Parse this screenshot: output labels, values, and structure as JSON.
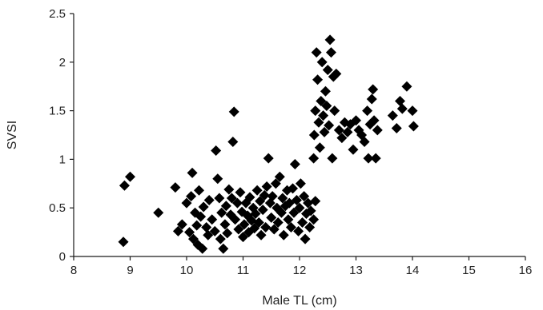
{
  "chart_data": {
    "type": "scatter",
    "title": "",
    "xlabel": "Male TL (cm)",
    "ylabel": "SVSI",
    "xlim": [
      8,
      16
    ],
    "ylim": [
      0,
      2.5
    ],
    "x_ticks": [
      "8",
      "9",
      "10",
      "11",
      "12",
      "13",
      "14",
      "15",
      "16"
    ],
    "y_ticks": [
      "0",
      "0.5",
      "1",
      "1.5",
      "2",
      "2.5"
    ],
    "grid": false,
    "legend": "none",
    "marker": "diamond",
    "marker_color": "#000000",
    "series": [
      {
        "points": [
          [
            8.88,
            0.15
          ],
          [
            8.9,
            0.73
          ],
          [
            9.0,
            0.82
          ],
          [
            9.5,
            0.45
          ],
          [
            9.8,
            0.71
          ],
          [
            9.85,
            0.26
          ],
          [
            9.92,
            0.33
          ],
          [
            10.0,
            0.55
          ],
          [
            10.05,
            0.25
          ],
          [
            10.08,
            0.62
          ],
          [
            10.1,
            0.86
          ],
          [
            10.12,
            0.18
          ],
          [
            10.15,
            0.45
          ],
          [
            10.18,
            0.32
          ],
          [
            10.2,
            0.12
          ],
          [
            10.22,
            0.68
          ],
          [
            10.25,
            0.41
          ],
          [
            10.28,
            0.08
          ],
          [
            10.3,
            0.51
          ],
          [
            10.35,
            0.3
          ],
          [
            10.38,
            0.22
          ],
          [
            10.4,
            0.58
          ],
          [
            10.45,
            0.38
          ],
          [
            10.5,
            0.26
          ],
          [
            10.52,
            1.09
          ],
          [
            10.55,
            0.8
          ],
          [
            10.58,
            0.6
          ],
          [
            10.6,
            0.18
          ],
          [
            10.62,
            0.45
          ],
          [
            10.65,
            0.08
          ],
          [
            10.68,
            0.33
          ],
          [
            10.7,
            0.52
          ],
          [
            10.72,
            0.24
          ],
          [
            10.75,
            0.69
          ],
          [
            10.78,
            0.43
          ],
          [
            10.8,
            0.6
          ],
          [
            10.82,
            1.18
          ],
          [
            10.84,
            1.49
          ],
          [
            10.86,
            0.38
          ],
          [
            10.9,
            0.55
          ],
          [
            10.92,
            0.28
          ],
          [
            10.95,
            0.66
          ],
          [
            10.98,
            0.46
          ],
          [
            11.0,
            0.2
          ],
          [
            11.02,
            0.33
          ],
          [
            11.05,
            0.55
          ],
          [
            11.08,
            0.42
          ],
          [
            11.1,
            0.25
          ],
          [
            11.12,
            0.61
          ],
          [
            11.15,
            0.37
          ],
          [
            11.18,
            0.5
          ],
          [
            11.2,
            0.29
          ],
          [
            11.22,
            0.44
          ],
          [
            11.25,
            0.68
          ],
          [
            11.28,
            0.35
          ],
          [
            11.3,
            0.57
          ],
          [
            11.32,
            0.22
          ],
          [
            11.35,
            0.48
          ],
          [
            11.38,
            0.63
          ],
          [
            11.4,
            0.3
          ],
          [
            11.42,
            0.72
          ],
          [
            11.45,
            1.01
          ],
          [
            11.48,
            0.55
          ],
          [
            11.5,
            0.4
          ],
          [
            11.52,
            0.62
          ],
          [
            11.55,
            0.28
          ],
          [
            11.58,
            0.75
          ],
          [
            11.6,
            0.5
          ],
          [
            11.62,
            0.35
          ],
          [
            11.65,
            0.82
          ],
          [
            11.68,
            0.45
          ],
          [
            11.7,
            0.6
          ],
          [
            11.72,
            0.22
          ],
          [
            11.75,
            0.52
          ],
          [
            11.78,
            0.68
          ],
          [
            11.8,
            0.38
          ],
          [
            11.82,
            0.55
          ],
          [
            11.85,
            0.3
          ],
          [
            11.88,
            0.7
          ],
          [
            11.9,
            0.45
          ],
          [
            11.92,
            0.95
          ],
          [
            11.95,
            0.58
          ],
          [
            11.98,
            0.26
          ],
          [
            12.0,
            0.5
          ],
          [
            12.02,
            0.75
          ],
          [
            12.05,
            0.35
          ],
          [
            12.08,
            0.62
          ],
          [
            12.1,
            0.18
          ],
          [
            12.12,
            0.44
          ],
          [
            12.15,
            0.55
          ],
          [
            12.18,
            0.3
          ],
          [
            12.2,
            0.47
          ],
          [
            12.25,
            0.38
          ],
          [
            12.28,
            0.57
          ],
          [
            12.25,
            1.01
          ],
          [
            12.26,
            1.25
          ],
          [
            12.28,
            1.5
          ],
          [
            12.3,
            2.1
          ],
          [
            12.32,
            1.82
          ],
          [
            12.34,
            1.38
          ],
          [
            12.36,
            1.12
          ],
          [
            12.38,
            1.6
          ],
          [
            12.4,
            2.0
          ],
          [
            12.42,
            1.45
          ],
          [
            12.44,
            1.28
          ],
          [
            12.46,
            1.7
          ],
          [
            12.48,
            1.55
          ],
          [
            12.5,
            1.92
          ],
          [
            12.52,
            1.35
          ],
          [
            12.54,
            2.23
          ],
          [
            12.56,
            2.1
          ],
          [
            12.58,
            1.01
          ],
          [
            12.6,
            1.85
          ],
          [
            12.62,
            1.5
          ],
          [
            12.65,
            1.88
          ],
          [
            12.7,
            1.3
          ],
          [
            12.75,
            1.22
          ],
          [
            12.8,
            1.38
          ],
          [
            12.85,
            1.28
          ],
          [
            12.9,
            1.36
          ],
          [
            12.95,
            1.1
          ],
          [
            13.0,
            1.4
          ],
          [
            13.05,
            1.3
          ],
          [
            13.1,
            1.25
          ],
          [
            13.15,
            1.18
          ],
          [
            13.2,
            1.5
          ],
          [
            13.22,
            1.01
          ],
          [
            13.25,
            1.36
          ],
          [
            13.28,
            1.62
          ],
          [
            13.3,
            1.72
          ],
          [
            13.32,
            1.4
          ],
          [
            13.35,
            1.01
          ],
          [
            13.38,
            1.3
          ],
          [
            13.65,
            1.45
          ],
          [
            13.72,
            1.32
          ],
          [
            13.78,
            1.6
          ],
          [
            13.82,
            1.52
          ],
          [
            13.9,
            1.75
          ],
          [
            14.0,
            1.5
          ],
          [
            14.02,
            1.34
          ]
        ]
      }
    ]
  }
}
